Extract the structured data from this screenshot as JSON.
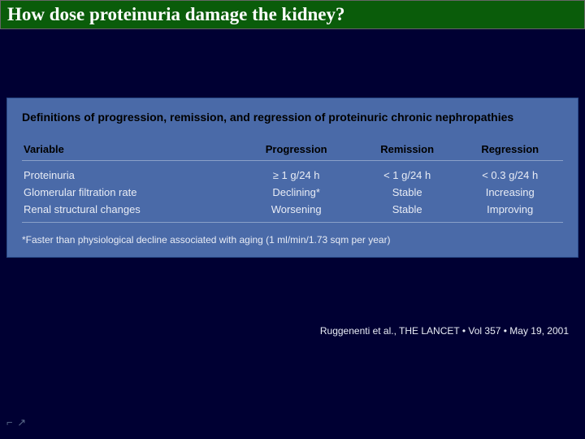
{
  "slide": {
    "title": "How dose proteinuria damage the kidney?"
  },
  "panel": {
    "heading": "Definitions of progression, remission, and regression of proteinuric chronic nephropathies",
    "columns": {
      "c0": "Variable",
      "c1": "Progression",
      "c2": "Remission",
      "c3": "Regression"
    },
    "rows": {
      "r0": {
        "v": "Proteinuria",
        "p": "≥ 1 g/24 h",
        "rem": "< 1 g/24 h",
        "reg": "< 0.3 g/24 h"
      },
      "r1": {
        "v": "Glomerular filtration rate",
        "p": "Declining*",
        "rem": "Stable",
        "reg": "Increasing"
      },
      "r2": {
        "v": "Renal structural changes",
        "p": "Worsening",
        "rem": "Stable",
        "reg": "Improving"
      }
    },
    "footnote": "*Faster than physiological decline associated with aging (1 ml/min/1.73 sqm per year)"
  },
  "citation": "Ruggenenti et al., THE LANCET • Vol 357 • May 19, 2001",
  "colors": {
    "slide_bg": "#000033",
    "title_bg": "#0a5c0a",
    "title_text": "#ffffff",
    "panel_bg": "#4a6aa8",
    "panel_heading": "#000000",
    "table_header": "#000000",
    "table_text": "#e8ecf5",
    "rule": "#8aa0c8"
  }
}
